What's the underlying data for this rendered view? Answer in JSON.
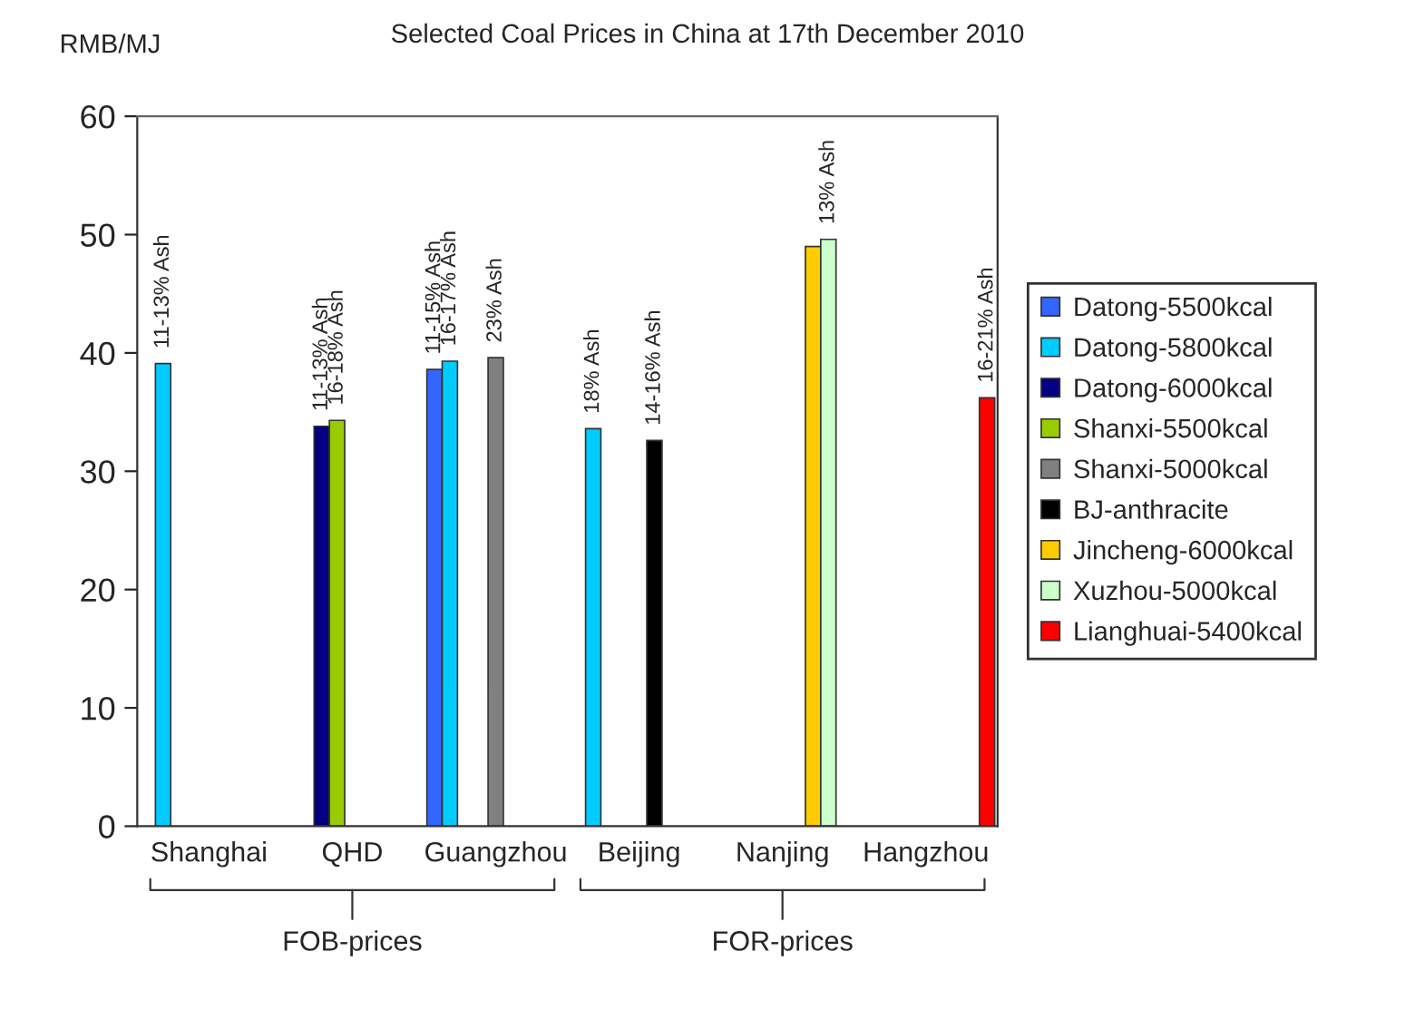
{
  "chart_data": {
    "type": "bar",
    "title": "Selected Coal Prices in China at 17th December 2010",
    "ylabel": "RMB/MJ",
    "categories": [
      "Shanghai",
      "QHD",
      "Guangzhou",
      "Beijing",
      "Nanjing",
      "Hangzhou"
    ],
    "series": [
      {
        "name": "Datong-5500kcal",
        "color": "#3366ff",
        "values": [
          null,
          null,
          38.6,
          null,
          null,
          null
        ]
      },
      {
        "name": "Datong-5800kcal",
        "color": "#00ccff",
        "values": [
          39.1,
          null,
          39.3,
          33.6,
          null,
          null
        ]
      },
      {
        "name": "Datong-6000kcal",
        "color": "#000080",
        "values": [
          null,
          33.8,
          null,
          null,
          null,
          null
        ]
      },
      {
        "name": "Shanxi-5500kcal",
        "color": "#99cc00",
        "values": [
          null,
          34.3,
          null,
          null,
          null,
          null
        ]
      },
      {
        "name": "Shanxi-5000kcal",
        "color": "#808080",
        "values": [
          null,
          null,
          39.6,
          null,
          null,
          null
        ]
      },
      {
        "name": "BJ-anthracite",
        "color": "#000000",
        "values": [
          null,
          null,
          null,
          32.6,
          null,
          null
        ]
      },
      {
        "name": "Jincheng-6000kcal",
        "color": "#ffcc00",
        "values": [
          null,
          null,
          null,
          null,
          49.0,
          null
        ]
      },
      {
        "name": "Xuzhou-5000kcal",
        "color": "#ccffcc",
        "values": [
          null,
          null,
          null,
          null,
          49.6,
          null
        ]
      },
      {
        "name": "Lianghuai-5400kcal",
        "color": "#ff0000",
        "values": [
          null,
          null,
          null,
          null,
          null,
          36.2
        ]
      }
    ],
    "ylim": [
      0,
      60
    ],
    "yticks": [
      0,
      10,
      20,
      30,
      40,
      50,
      60
    ],
    "grid": false,
    "legend": "right",
    "annotations": [
      {
        "text": "11-13% Ash",
        "y": 39.1
      },
      {
        "text": "11-13% Ash",
        "y": 33.8
      },
      {
        "text": "16-18% Ash",
        "y": 34.3
      },
      {
        "text": "11-15% Ash",
        "y": 38.6
      },
      {
        "text": "16-17% Ash",
        "y": 39.3
      },
      {
        "text": "23% Ash",
        "y": 39.6
      },
      {
        "text": "18% Ash",
        "y": 33.6
      },
      {
        "text": "14-16% Ash",
        "y": 32.6
      },
      {
        "text": "13% Ash",
        "y": 49.6
      },
      {
        "text": "16-21% Ash",
        "y": 36.2
      },
      "FOB-prices",
      "FOR-prices"
    ]
  }
}
